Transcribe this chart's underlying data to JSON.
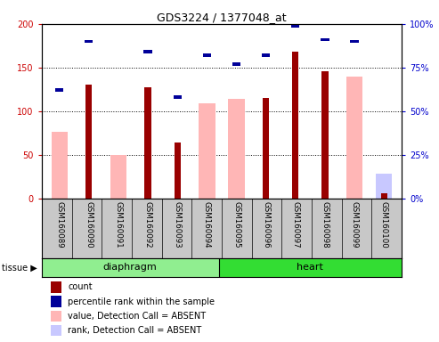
{
  "title": "GDS3224 / 1377048_at",
  "samples": [
    "GSM160089",
    "GSM160090",
    "GSM160091",
    "GSM160092",
    "GSM160093",
    "GSM160094",
    "GSM160095",
    "GSM160096",
    "GSM160097",
    "GSM160098",
    "GSM160099",
    "GSM160100"
  ],
  "count": [
    0,
    130,
    0,
    127,
    64,
    0,
    0,
    115,
    168,
    146,
    0,
    6
  ],
  "percentile_rank": [
    62,
    90,
    0,
    84,
    58,
    82,
    77,
    82,
    99,
    91,
    90,
    0
  ],
  "value_absent": [
    76,
    0,
    50,
    0,
    0,
    109,
    114,
    0,
    0,
    0,
    140,
    0
  ],
  "rank_absent": [
    0,
    0,
    0,
    0,
    0,
    0,
    0,
    0,
    0,
    0,
    0,
    14
  ],
  "ylim_left": [
    0,
    200
  ],
  "ylim_right": [
    0,
    100
  ],
  "yticks_left": [
    0,
    50,
    100,
    150,
    200
  ],
  "yticks_right": [
    0,
    25,
    50,
    75,
    100
  ],
  "ytick_labels_left": [
    "0",
    "50",
    "100",
    "150",
    "200"
  ],
  "ytick_labels_right": [
    "0%",
    "25%",
    "50%",
    "75%",
    "100%"
  ],
  "color_count": "#990000",
  "color_rank": "#000099",
  "color_value_absent": "#ffb6b6",
  "color_rank_absent": "#c8c8ff",
  "diaphragm_color": "#90ee90",
  "heart_color": "#33dd33",
  "tick_bg": "#c8c8c8",
  "legend_items": [
    {
      "label": "count",
      "color": "#990000"
    },
    {
      "label": "percentile rank within the sample",
      "color": "#000099"
    },
    {
      "label": "value, Detection Call = ABSENT",
      "color": "#ffb6b6"
    },
    {
      "label": "rank, Detection Call = ABSENT",
      "color": "#c8c8ff"
    }
  ]
}
